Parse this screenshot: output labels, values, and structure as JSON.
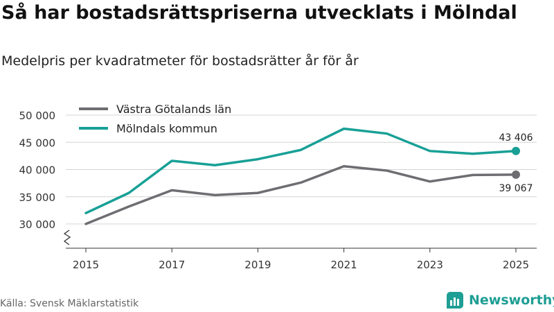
{
  "title": "Så har bostadsrättspriserna utvecklats i Mölndal",
  "subtitle": "Medelpris per kvadratmeter för bostadsrätter år för år",
  "source": "Källa: Svensk Mäklarstatistik",
  "brand": {
    "name": "Newsworthy",
    "icon": "newsworthy-logo-icon",
    "color": "#1e9e94"
  },
  "chart_data": {
    "type": "line",
    "title": "Så har bostadsrättspriserna utvecklats i Mölndal",
    "subtitle": "Medelpris per kvadratmeter för bostadsrätter år för år",
    "xlabel": "",
    "ylabel": "",
    "x": [
      2015,
      2016,
      2017,
      2018,
      2019,
      2020,
      2021,
      2022,
      2023,
      2024,
      2025
    ],
    "x_tick_labels": [
      "2015",
      "2017",
      "2019",
      "2021",
      "2023",
      "2025"
    ],
    "x_ticks": [
      2015,
      2017,
      2019,
      2021,
      2023,
      2025
    ],
    "y_ticks": [
      30000,
      35000,
      40000,
      45000,
      50000
    ],
    "y_tick_labels": [
      "30 000",
      "35 000",
      "40 000",
      "45 000",
      "50 000"
    ],
    "ylim": [
      30000,
      50000
    ],
    "grid": true,
    "legend": "top-left",
    "axis_break": true,
    "series": [
      {
        "name": "Västra Götalands län",
        "color": "#6e6e72",
        "values": [
          30000,
          33200,
          36200,
          35300,
          35700,
          37600,
          40600,
          39800,
          37800,
          39000,
          39067
        ],
        "end_label": "39 067"
      },
      {
        "name": "Mölndals kommun",
        "color": "#18a096",
        "values": [
          32000,
          35700,
          41600,
          40800,
          41900,
          43600,
          47500,
          46600,
          43400,
          42900,
          43406
        ],
        "end_label": "43 406"
      }
    ]
  }
}
